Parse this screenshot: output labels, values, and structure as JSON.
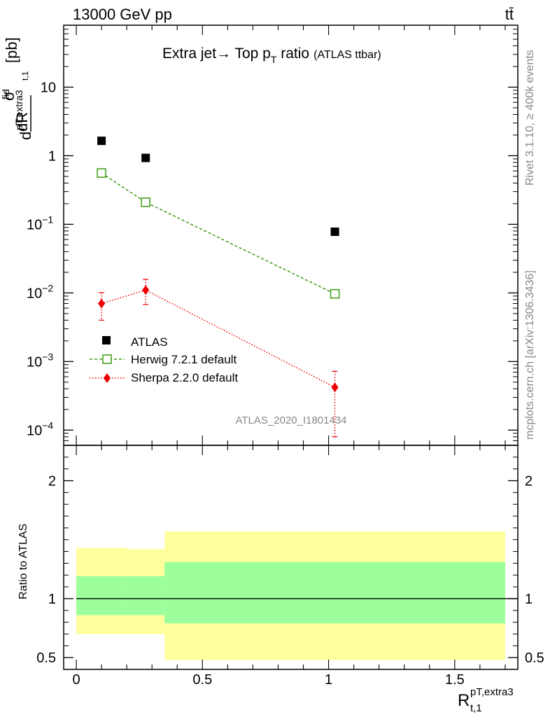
{
  "header": {
    "energy_label": "13000 GeV pp",
    "process_label": "tt̄",
    "analysis_id": "ATLAS_2020_I1801434"
  },
  "side_labels": {
    "rivet": "Rivet 3.1.10, ≥ 400k events",
    "mcplots": "mcplots.cern.ch [arXiv:1306.3436]"
  },
  "chart_data": [
    {
      "type": "scatter",
      "title_main": "Extra jet→ Top p",
      "title_sub": "T",
      "title_tail": " ratio",
      "title_small": "(ATLAS ttbar)",
      "ylabel": "dσ/dR [pb]",
      "ylabel_parts": {
        "d": "d",
        "sigma": "σ",
        "fid": "fid",
        "pt_extra3": "pT,extra3",
        "t1": "t,1",
        "dR": "dR",
        "unit": "[pb]"
      },
      "yscale": "log",
      "ylim": [
        6e-05,
        80
      ],
      "xlim": [
        -0.05,
        1.75
      ],
      "y_ticks": [
        {
          "value": 10,
          "label": "10"
        },
        {
          "value": 1,
          "label": "1"
        },
        {
          "value": 0.1,
          "label": "10",
          "exp": "−1"
        },
        {
          "value": 0.01,
          "label": "10",
          "exp": "−2"
        },
        {
          "value": 0.001,
          "label": "10",
          "exp": "−3"
        },
        {
          "value": 0.0001,
          "label": "10",
          "exp": "−4"
        }
      ],
      "legend_position": "lower-left",
      "series": [
        {
          "name": "ATLAS",
          "style": "marker-square-filled",
          "color": "#000000",
          "x": [
            0.1,
            0.275,
            1.025
          ],
          "y": [
            1.65,
            0.93,
            0.078
          ]
        },
        {
          "name": "Herwig 7.2.1 default",
          "style": "marker-square-open-dashed",
          "color": "#3a9a10",
          "x": [
            0.1,
            0.275,
            1.025
          ],
          "y": [
            0.56,
            0.21,
            0.0097
          ]
        },
        {
          "name": "Sherpa 2.2.0 default",
          "style": "marker-diamond-dotted",
          "color": "#ee0000",
          "x": [
            0.1,
            0.275,
            1.025
          ],
          "y": [
            0.007,
            0.011,
            0.00042
          ],
          "y_low": [
            0.004,
            0.0068,
            8e-05
          ],
          "y_high": [
            0.0101,
            0.0158,
            0.00072
          ]
        }
      ]
    },
    {
      "type": "area",
      "ylabel": "Ratio to ATLAS",
      "xlabel_main": "R",
      "xlabel_sup": "pT,extra3",
      "xlabel_sub": "t,1",
      "ylim": [
        0.4,
        2.3
      ],
      "xlim": [
        -0.05,
        1.75
      ],
      "x_ticks": [
        {
          "value": 0,
          "label": "0"
        },
        {
          "value": 0.5,
          "label": "0.5"
        },
        {
          "value": 1,
          "label": "1"
        },
        {
          "value": 1.5,
          "label": "1.5"
        }
      ],
      "y_ticks": [
        {
          "value": 2,
          "label": "2"
        },
        {
          "value": 1,
          "label": "1"
        },
        {
          "value": 0.5,
          "label": "0.5"
        }
      ],
      "bands": [
        {
          "x_low": 0.0,
          "x_high": 0.2,
          "inner_low": 0.86,
          "inner_high": 1.19,
          "outer_low": 0.7,
          "outer_high": 1.43
        },
        {
          "x_low": 0.2,
          "x_high": 0.35,
          "inner_low": 0.86,
          "inner_high": 1.19,
          "outer_low": 0.7,
          "outer_high": 1.42
        },
        {
          "x_low": 0.35,
          "x_high": 1.7,
          "inner_low": 0.79,
          "inner_high": 1.31,
          "outer_low": 0.48,
          "outer_high": 1.57
        }
      ],
      "colors": {
        "inner": "#9cff9c",
        "outer": "#ffff9c",
        "reference": "#000000"
      }
    }
  ]
}
